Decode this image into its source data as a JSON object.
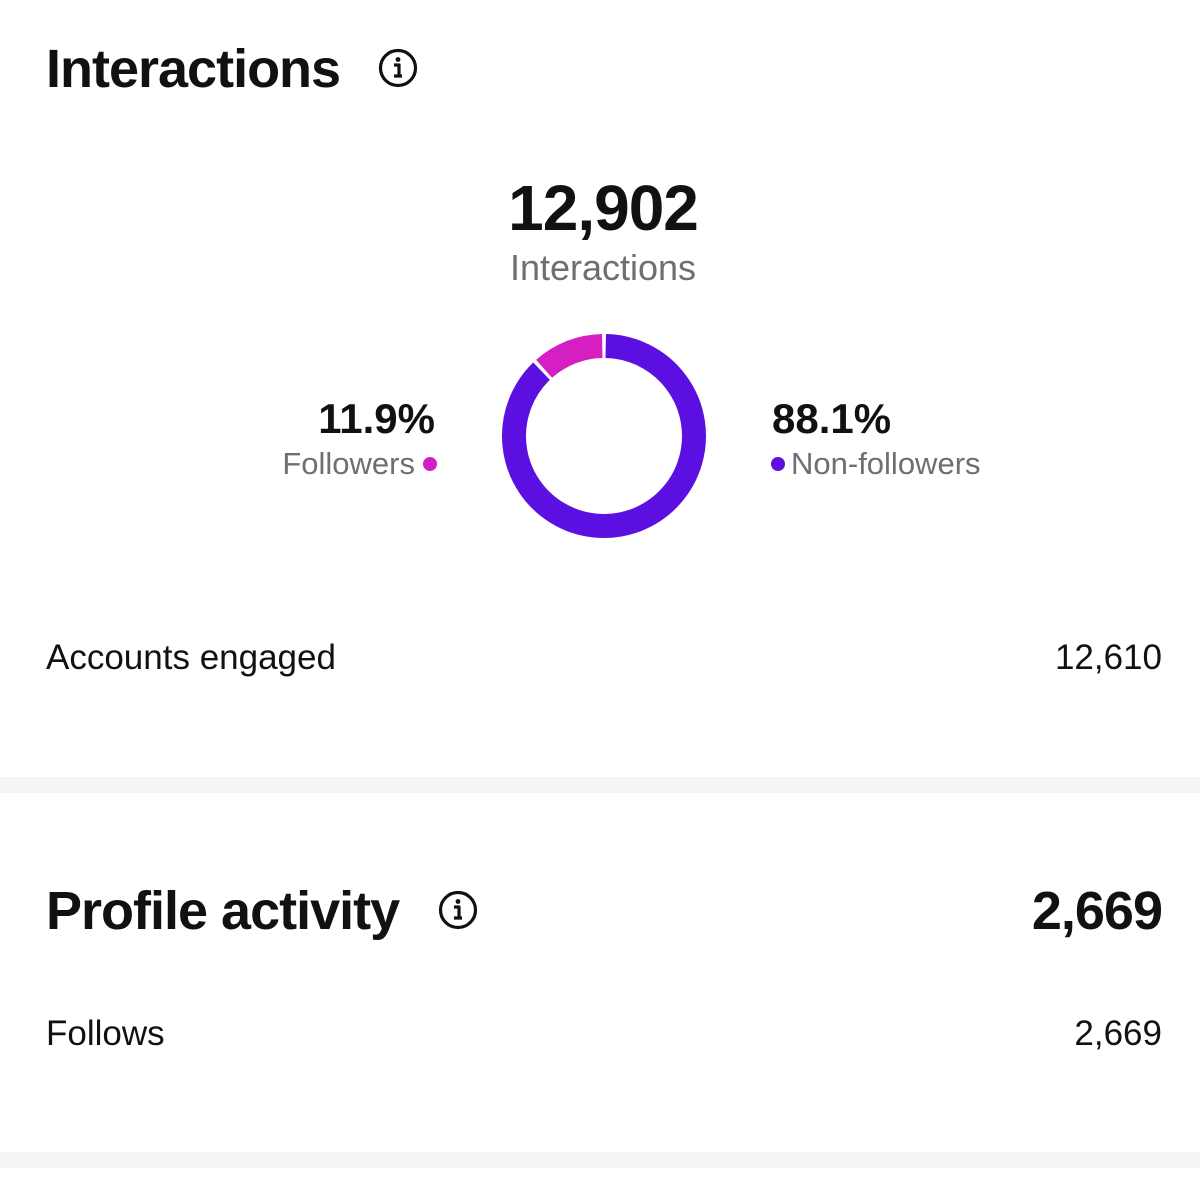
{
  "interactions": {
    "title": "Interactions",
    "total_value": "12,902",
    "total_label": "Interactions",
    "followers": {
      "percent": "11.9%",
      "label": "Followers",
      "fraction": 0.119,
      "color": "#d61fc3"
    },
    "non_followers": {
      "percent": "88.1%",
      "label": "Non-followers",
      "fraction": 0.881,
      "color": "#5b0fe0"
    },
    "accounts_engaged": {
      "label": "Accounts engaged",
      "value": "12,610"
    }
  },
  "profile_activity": {
    "title": "Profile activity",
    "total_value": "2,669",
    "follows": {
      "label": "Follows",
      "value": "2,669"
    }
  },
  "icons": {
    "info": "info-icon"
  },
  "colors": {
    "text_primary": "#111111",
    "text_muted": "#6e6e73",
    "divider": "#f5f5f7"
  }
}
